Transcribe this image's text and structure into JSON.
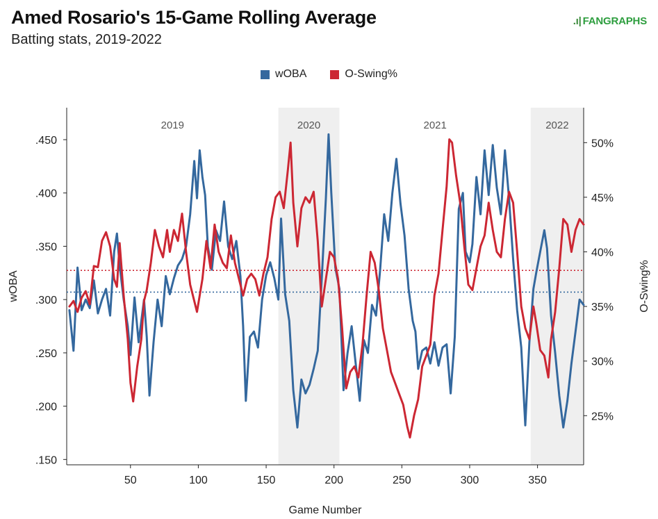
{
  "header": {
    "title": "Amed Rosario's 15-Game Rolling Average",
    "subtitle": "Batting stats, 2019-2022",
    "logo_text": "FANGRAPHS"
  },
  "colors": {
    "woba": "#34689e",
    "oswing": "#cc2733",
    "season_shade": "#efefef"
  },
  "chart_data": {
    "type": "line",
    "title": "Amed Rosario's 15-Game Rolling Average",
    "subtitle": "Batting stats, 2019-2022",
    "xlabel": "Game Number",
    "ylabel_left": "wOBA",
    "ylabel_right": "O-Swing%",
    "xlim": [
      3,
      384
    ],
    "xticks": [
      50,
      100,
      150,
      200,
      250,
      300,
      350
    ],
    "ylim_left": [
      0.145,
      0.48
    ],
    "yticks_left": [
      ".150",
      ".200",
      ".250",
      ".300",
      ".350",
      ".400",
      ".450"
    ],
    "ylim_right": [
      20.5,
      53.2
    ],
    "yticks_right": [
      "25%",
      "30%",
      "35%",
      "40%",
      "45%",
      "50%"
    ],
    "legend": [
      "wOBA",
      "O-Swing%"
    ],
    "legend_position": "top-center",
    "grid": false,
    "seasons": [
      {
        "label": "2019",
        "start": 3,
        "end": 159,
        "shaded": false
      },
      {
        "label": "2020",
        "start": 159,
        "end": 204,
        "shaded": true
      },
      {
        "label": "2021",
        "start": 204,
        "end": 345,
        "shaded": false
      },
      {
        "label": "2022",
        "start": 345,
        "end": 384,
        "shaded": true
      }
    ],
    "reference_lines": [
      {
        "series": "wOBA",
        "value": 0.307
      },
      {
        "series": "O-Swing%",
        "value": 38.3
      }
    ],
    "series": [
      {
        "name": "wOBA",
        "axis": "left",
        "points": [
          [
            5,
            0.29
          ],
          [
            8,
            0.252
          ],
          [
            11,
            0.33
          ],
          [
            14,
            0.29
          ],
          [
            17,
            0.3
          ],
          [
            20,
            0.292
          ],
          [
            23,
            0.318
          ],
          [
            26,
            0.287
          ],
          [
            29,
            0.3
          ],
          [
            32,
            0.31
          ],
          [
            35,
            0.285
          ],
          [
            38,
            0.345
          ],
          [
            40,
            0.362
          ],
          [
            42,
            0.332
          ],
          [
            45,
            0.3
          ],
          [
            48,
            0.275
          ],
          [
            50,
            0.248
          ],
          [
            53,
            0.302
          ],
          [
            56,
            0.26
          ],
          [
            60,
            0.3
          ],
          [
            62,
            0.265
          ],
          [
            64,
            0.21
          ],
          [
            67,
            0.26
          ],
          [
            70,
            0.3
          ],
          [
            73,
            0.275
          ],
          [
            76,
            0.322
          ],
          [
            79,
            0.305
          ],
          [
            82,
            0.32
          ],
          [
            85,
            0.332
          ],
          [
            88,
            0.338
          ],
          [
            91,
            0.35
          ],
          [
            94,
            0.38
          ],
          [
            97,
            0.43
          ],
          [
            99,
            0.395
          ],
          [
            101,
            0.44
          ],
          [
            103,
            0.415
          ],
          [
            105,
            0.398
          ],
          [
            107,
            0.35
          ],
          [
            110,
            0.328
          ],
          [
            113,
            0.365
          ],
          [
            116,
            0.355
          ],
          [
            119,
            0.392
          ],
          [
            122,
            0.35
          ],
          [
            125,
            0.338
          ],
          [
            128,
            0.355
          ],
          [
            131,
            0.322
          ],
          [
            133,
            0.275
          ],
          [
            135,
            0.205
          ],
          [
            138,
            0.265
          ],
          [
            141,
            0.27
          ],
          [
            144,
            0.255
          ],
          [
            147,
            0.3
          ],
          [
            150,
            0.323
          ],
          [
            153,
            0.335
          ],
          [
            156,
            0.32
          ],
          [
            159,
            0.3
          ],
          [
            161,
            0.376
          ],
          [
            164,
            0.305
          ],
          [
            167,
            0.28
          ],
          [
            170,
            0.215
          ],
          [
            173,
            0.18
          ],
          [
            176,
            0.225
          ],
          [
            179,
            0.212
          ],
          [
            182,
            0.22
          ],
          [
            185,
            0.235
          ],
          [
            188,
            0.252
          ],
          [
            191,
            0.32
          ],
          [
            194,
            0.395
          ],
          [
            196,
            0.455
          ],
          [
            198,
            0.4
          ],
          [
            201,
            0.33
          ],
          [
            204,
            0.31
          ],
          [
            207,
            0.215
          ],
          [
            210,
            0.25
          ],
          [
            213,
            0.275
          ],
          [
            216,
            0.24
          ],
          [
            219,
            0.205
          ],
          [
            222,
            0.262
          ],
          [
            225,
            0.25
          ],
          [
            228,
            0.295
          ],
          [
            231,
            0.285
          ],
          [
            234,
            0.328
          ],
          [
            237,
            0.38
          ],
          [
            240,
            0.355
          ],
          [
            243,
            0.4
          ],
          [
            246,
            0.432
          ],
          [
            249,
            0.39
          ],
          [
            252,
            0.36
          ],
          [
            255,
            0.31
          ],
          [
            258,
            0.28
          ],
          [
            260,
            0.27
          ],
          [
            262,
            0.235
          ],
          [
            265,
            0.252
          ],
          [
            268,
            0.255
          ],
          [
            271,
            0.24
          ],
          [
            274,
            0.26
          ],
          [
            277,
            0.238
          ],
          [
            280,
            0.255
          ],
          [
            283,
            0.258
          ],
          [
            286,
            0.212
          ],
          [
            289,
            0.265
          ],
          [
            292,
            0.385
          ],
          [
            295,
            0.4
          ],
          [
            297,
            0.345
          ],
          [
            300,
            0.335
          ],
          [
            302,
            0.352
          ],
          [
            305,
            0.415
          ],
          [
            308,
            0.38
          ],
          [
            311,
            0.44
          ],
          [
            314,
            0.398
          ],
          [
            317,
            0.445
          ],
          [
            320,
            0.405
          ],
          [
            323,
            0.38
          ],
          [
            326,
            0.44
          ],
          [
            329,
            0.395
          ],
          [
            332,
            0.338
          ],
          [
            335,
            0.29
          ],
          [
            338,
            0.255
          ],
          [
            341,
            0.182
          ],
          [
            344,
            0.26
          ],
          [
            347,
            0.31
          ],
          [
            349,
            0.325
          ],
          [
            352,
            0.345
          ],
          [
            355,
            0.365
          ],
          [
            357,
            0.348
          ],
          [
            360,
            0.285
          ],
          [
            363,
            0.25
          ],
          [
            366,
            0.21
          ],
          [
            369,
            0.18
          ],
          [
            372,
            0.205
          ],
          [
            375,
            0.24
          ],
          [
            378,
            0.27
          ],
          [
            381,
            0.3
          ],
          [
            384,
            0.295
          ]
        ]
      },
      {
        "name": "O-Swing%",
        "axis": "right",
        "points": [
          [
            5,
            35.0
          ],
          [
            8,
            35.5
          ],
          [
            11,
            34.5
          ],
          [
            14,
            35.8
          ],
          [
            17,
            36.4
          ],
          [
            20,
            35.2
          ],
          [
            23,
            38.7
          ],
          [
            26,
            38.6
          ],
          [
            29,
            41.0
          ],
          [
            32,
            41.8
          ],
          [
            35,
            40.5
          ],
          [
            38,
            37.5
          ],
          [
            40,
            36.8
          ],
          [
            42,
            40.8
          ],
          [
            45,
            36.0
          ],
          [
            48,
            32.0
          ],
          [
            50,
            28.0
          ],
          [
            52,
            26.3
          ],
          [
            55,
            29.5
          ],
          [
            58,
            32.0
          ],
          [
            60,
            35.5
          ],
          [
            62,
            36.5
          ],
          [
            65,
            39.0
          ],
          [
            68,
            42.0
          ],
          [
            71,
            40.5
          ],
          [
            74,
            39.5
          ],
          [
            77,
            42.0
          ],
          [
            79,
            40.0
          ],
          [
            82,
            42.0
          ],
          [
            85,
            41.0
          ],
          [
            88,
            43.5
          ],
          [
            91,
            40.0
          ],
          [
            94,
            37.0
          ],
          [
            97,
            35.5
          ],
          [
            99,
            34.5
          ],
          [
            101,
            36.0
          ],
          [
            103,
            37.5
          ],
          [
            106,
            41.0
          ],
          [
            109,
            38.5
          ],
          [
            112,
            42.5
          ],
          [
            115,
            40.0
          ],
          [
            118,
            39.0
          ],
          [
            121,
            38.5
          ],
          [
            124,
            41.5
          ],
          [
            127,
            39.0
          ],
          [
            130,
            37.5
          ],
          [
            133,
            36.0
          ],
          [
            136,
            37.5
          ],
          [
            139,
            38.0
          ],
          [
            142,
            37.5
          ],
          [
            145,
            36.0
          ],
          [
            148,
            38.0
          ],
          [
            151,
            39.5
          ],
          [
            154,
            43.0
          ],
          [
            157,
            45.0
          ],
          [
            160,
            45.5
          ],
          [
            163,
            44.0
          ],
          [
            166,
            47.5
          ],
          [
            168,
            50.0
          ],
          [
            170,
            44.5
          ],
          [
            173,
            40.5
          ],
          [
            176,
            44.0
          ],
          [
            179,
            45.0
          ],
          [
            182,
            44.5
          ],
          [
            185,
            45.5
          ],
          [
            188,
            41.0
          ],
          [
            191,
            35.0
          ],
          [
            194,
            37.5
          ],
          [
            197,
            40.0
          ],
          [
            200,
            39.5
          ],
          [
            203,
            37.5
          ],
          [
            206,
            33.0
          ],
          [
            209,
            27.5
          ],
          [
            212,
            29.0
          ],
          [
            215,
            29.5
          ],
          [
            218,
            28.5
          ],
          [
            221,
            31.5
          ],
          [
            224,
            36.0
          ],
          [
            227,
            40.0
          ],
          [
            230,
            39.0
          ],
          [
            233,
            36.5
          ],
          [
            236,
            33.0
          ],
          [
            239,
            31.0
          ],
          [
            242,
            29.0
          ],
          [
            245,
            28.0
          ],
          [
            248,
            27.0
          ],
          [
            251,
            26.0
          ],
          [
            254,
            24.0
          ],
          [
            256,
            23.0
          ],
          [
            259,
            25.0
          ],
          [
            262,
            26.5
          ],
          [
            265,
            29.5
          ],
          [
            268,
            30.5
          ],
          [
            271,
            31.5
          ],
          [
            274,
            36.0
          ],
          [
            277,
            38.0
          ],
          [
            280,
            42.0
          ],
          [
            283,
            46.0
          ],
          [
            285,
            50.3
          ],
          [
            287,
            50.0
          ],
          [
            290,
            47.0
          ],
          [
            293,
            44.5
          ],
          [
            296,
            40.5
          ],
          [
            299,
            37.0
          ],
          [
            302,
            36.5
          ],
          [
            305,
            38.5
          ],
          [
            308,
            40.5
          ],
          [
            311,
            41.5
          ],
          [
            314,
            44.5
          ],
          [
            317,
            42.0
          ],
          [
            320,
            40.0
          ],
          [
            323,
            39.5
          ],
          [
            326,
            43.0
          ],
          [
            329,
            45.5
          ],
          [
            332,
            44.5
          ],
          [
            335,
            40.0
          ],
          [
            338,
            35.0
          ],
          [
            341,
            33.0
          ],
          [
            344,
            32.0
          ],
          [
            347,
            35.0
          ],
          [
            349,
            33.5
          ],
          [
            352,
            31.0
          ],
          [
            355,
            30.5
          ],
          [
            358,
            28.5
          ],
          [
            360,
            32.0
          ],
          [
            363,
            34.5
          ],
          [
            366,
            38.5
          ],
          [
            369,
            43.0
          ],
          [
            372,
            42.5
          ],
          [
            375,
            40.0
          ],
          [
            378,
            42.0
          ],
          [
            381,
            43.0
          ],
          [
            384,
            42.5
          ]
        ]
      }
    ]
  }
}
